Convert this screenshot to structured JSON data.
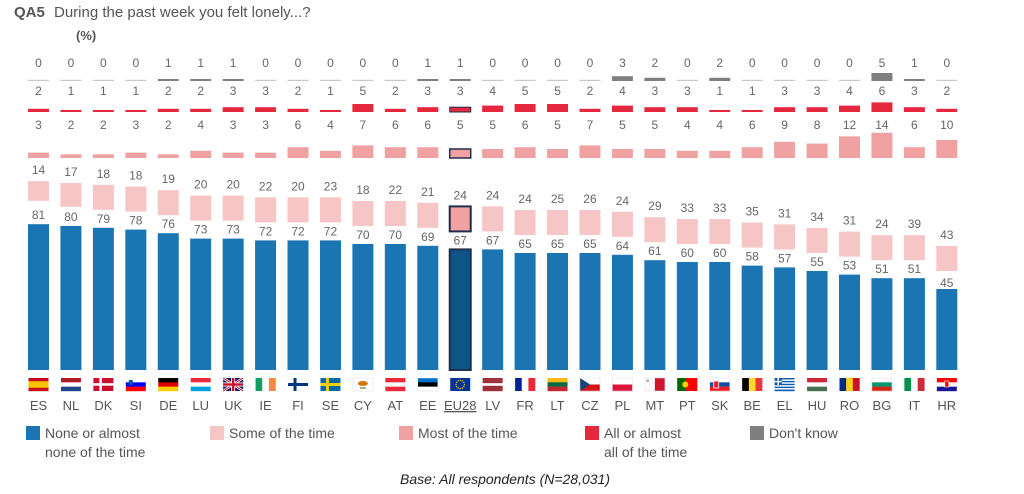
{
  "header": {
    "question_code": "QA5",
    "question_text": "During the past week you felt lonely...?",
    "unit": "(%)"
  },
  "footer": {
    "base_note": "Base: All respondents (N=28,031)"
  },
  "colors": {
    "none_or_almost_none": "#1a75b2",
    "none_or_almost_none_highlight": "#0e5487",
    "some_of_the_time": "#f6c5c5",
    "most_of_the_time": "#f0a1a1",
    "all_or_almost_all": "#e5283d",
    "dont_know": "#7f7f7f",
    "highlight_outline": "#1f2f4b"
  },
  "legend": [
    {
      "key": "none",
      "label_line1": "None or almost",
      "label_line2": "none of the time"
    },
    {
      "key": "some",
      "label_line1": "Some of the time",
      "label_line2": ""
    },
    {
      "key": "most",
      "label_line1": "Most of the time",
      "label_line2": ""
    },
    {
      "key": "all",
      "label_line1": "All or almost",
      "label_line2": "all of the time"
    },
    {
      "key": "dk",
      "label_line1": "Don't know",
      "label_line2": ""
    }
  ],
  "chart_data": {
    "type": "bar",
    "title": "During the past week you felt lonely...?",
    "unit": "%",
    "highlight_category": "EU28",
    "categories": [
      "ES",
      "NL",
      "DK",
      "SI",
      "DE",
      "LU",
      "UK",
      "IE",
      "FI",
      "SE",
      "CY",
      "AT",
      "EE",
      "EU28",
      "LV",
      "FR",
      "LT",
      "CZ",
      "PL",
      "MT",
      "PT",
      "SK",
      "BE",
      "EL",
      "HU",
      "RO",
      "BG",
      "IT",
      "HR"
    ],
    "flag_icons": [
      "flag-es",
      "flag-nl",
      "flag-dk",
      "flag-si",
      "flag-de",
      "flag-lu",
      "flag-uk",
      "flag-ie",
      "flag-fi",
      "flag-se",
      "flag-cy",
      "flag-at",
      "flag-ee",
      "flag-eu",
      "flag-lv",
      "flag-fr",
      "flag-lt",
      "flag-cz",
      "flag-pl",
      "flag-mt",
      "flag-pt",
      "flag-sk",
      "flag-be",
      "flag-el",
      "flag-hu",
      "flag-ro",
      "flag-bg",
      "flag-it",
      "flag-hr"
    ],
    "series": [
      {
        "name": "None or almost none of the time",
        "key": "none",
        "values": [
          81,
          80,
          79,
          78,
          76,
          73,
          73,
          72,
          72,
          72,
          70,
          70,
          69,
          67,
          67,
          65,
          65,
          65,
          64,
          61,
          60,
          60,
          58,
          57,
          55,
          53,
          51,
          51,
          45
        ]
      },
      {
        "name": "Some of the time",
        "key": "some",
        "values": [
          14,
          17,
          18,
          18,
          19,
          20,
          20,
          22,
          20,
          23,
          18,
          22,
          21,
          24,
          24,
          24,
          25,
          26,
          24,
          29,
          33,
          33,
          35,
          31,
          34,
          31,
          24,
          39,
          43
        ]
      },
      {
        "name": "Most of the time",
        "key": "most",
        "values": [
          3,
          2,
          2,
          3,
          2,
          4,
          3,
          3,
          6,
          4,
          7,
          6,
          6,
          5,
          5,
          6,
          5,
          7,
          5,
          5,
          4,
          4,
          6,
          9,
          8,
          12,
          14,
          6,
          10
        ]
      },
      {
        "name": "All or almost all of the time",
        "key": "all",
        "values": [
          2,
          1,
          1,
          1,
          2,
          2,
          3,
          3,
          2,
          1,
          5,
          2,
          3,
          3,
          4,
          5,
          5,
          2,
          4,
          3,
          3,
          1,
          1,
          3,
          3,
          4,
          6,
          3,
          2
        ]
      },
      {
        "name": "Don't know",
        "key": "dk",
        "values": [
          0,
          0,
          0,
          0,
          1,
          1,
          1,
          0,
          0,
          0,
          0,
          0,
          1,
          1,
          0,
          0,
          0,
          0,
          3,
          2,
          0,
          2,
          0,
          0,
          0,
          0,
          5,
          1,
          0
        ]
      }
    ]
  }
}
